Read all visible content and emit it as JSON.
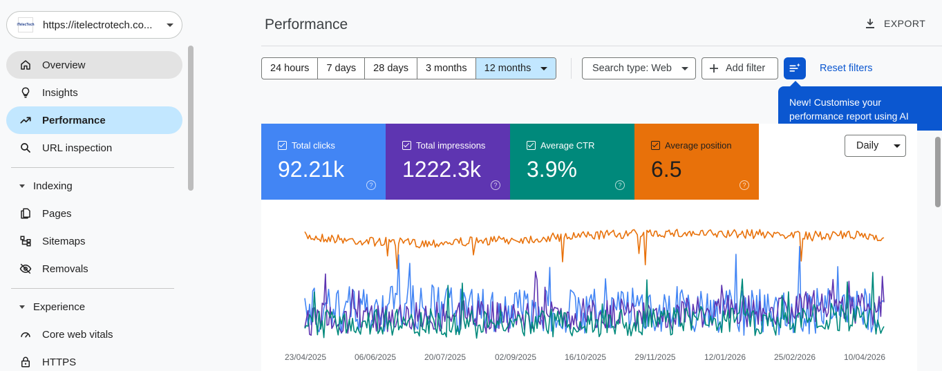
{
  "sidebar": {
    "property": "https://itelectrotech.co...",
    "property_logo_text": "iTelecTech",
    "items": [
      {
        "label": "Overview"
      },
      {
        "label": "Insights"
      },
      {
        "label": "Performance"
      },
      {
        "label": "URL inspection"
      }
    ],
    "sections": [
      {
        "label": "Indexing",
        "items": [
          {
            "label": "Pages"
          },
          {
            "label": "Sitemaps"
          },
          {
            "label": "Removals"
          }
        ]
      },
      {
        "label": "Experience",
        "items": [
          {
            "label": "Core web vitals"
          },
          {
            "label": "HTTPS"
          }
        ]
      }
    ]
  },
  "header": {
    "title": "Performance",
    "export_label": "EXPORT"
  },
  "toolbar": {
    "ranges": [
      "24 hours",
      "7 days",
      "28 days",
      "3 months",
      "12 months"
    ],
    "selected_range": "12 months",
    "search_type": "Search type: Web",
    "add_filter": "Add filter",
    "reset_filters": "Reset filters",
    "tooltip": "New! Customise your performance report using AI"
  },
  "metrics": [
    {
      "label": "Total clicks",
      "value": "92.21k",
      "color": "#4285f4"
    },
    {
      "label": "Total impressions",
      "value": "1222.3k",
      "color": "#5e35b1"
    },
    {
      "label": "Average CTR",
      "value": "3.9%",
      "color": "#00897b"
    },
    {
      "label": "Average position",
      "value": "6.5",
      "color": "#e8710a"
    }
  ],
  "granularity": "Daily",
  "chart_data": {
    "type": "line",
    "x_ticks": [
      "23/04/2025",
      "06/06/2025",
      "20/07/2025",
      "02/09/2025",
      "16/10/2025",
      "29/11/2025",
      "12/01/2026",
      "25/02/2026",
      "10/04/2026"
    ],
    "x_range": [
      "15/04/2025",
      "13/04/2026"
    ],
    "points_per_series": 365,
    "grid": false,
    "series": [
      {
        "name": "Average position",
        "color": "#e8710a",
        "level": [
          0.06,
          0.1,
          0.12,
          0.1,
          0.08,
          0.05,
          0.03,
          0.04,
          0.04,
          0.05,
          0.06
        ],
        "noise": 0.04
      },
      {
        "name": "Total clicks",
        "color": "#4285f4",
        "level": [
          0.72,
          0.7,
          0.68,
          0.7,
          0.72,
          0.7,
          0.68,
          0.7,
          0.72,
          0.7,
          0.7
        ],
        "noise": 0.2
      },
      {
        "name": "Total impressions",
        "color": "#5e35b1",
        "level": [
          0.78,
          0.75,
          0.74,
          0.76,
          0.75,
          0.73,
          0.74,
          0.72,
          0.7,
          0.65,
          0.7
        ],
        "noise": 0.14
      },
      {
        "name": "Average CTR",
        "color": "#00897b",
        "level": [
          0.82,
          0.8,
          0.8,
          0.82,
          0.8,
          0.82,
          0.8,
          0.78,
          0.8,
          0.75,
          0.8
        ],
        "noise": 0.12
      }
    ]
  }
}
